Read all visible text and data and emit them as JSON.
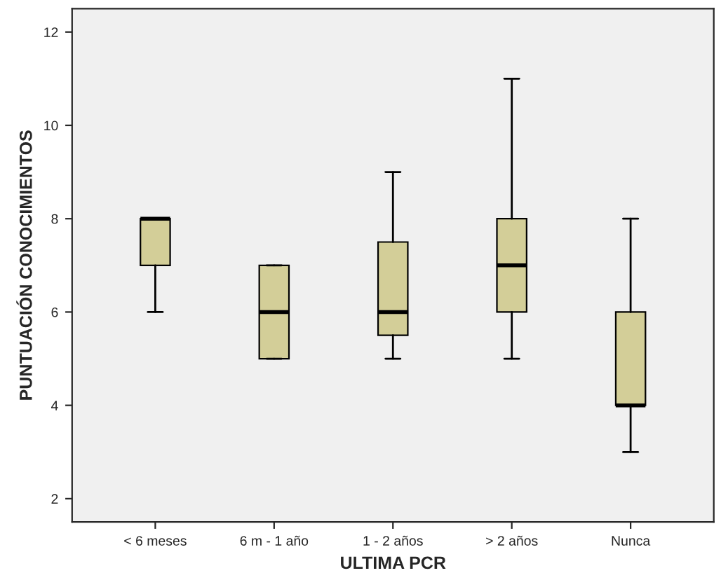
{
  "chart_data": {
    "type": "box",
    "xlabel": "ULTIMA PCR",
    "ylabel": "PUNTUACIÓN CONOCIMIENTOS",
    "categories": [
      "< 6 meses",
      "6 m - 1 año",
      "1 - 2 años",
      "> 2 años",
      "Nunca"
    ],
    "color": "#d3ce98",
    "boxes": [
      {
        "low": 6,
        "q1": 7,
        "median": 8,
        "q3": 8,
        "high": 8
      },
      {
        "low": 5,
        "q1": 5,
        "median": 6,
        "q3": 7,
        "high": 7
      },
      {
        "low": 5,
        "q1": 5.5,
        "median": 6,
        "q3": 7.5,
        "high": 9
      },
      {
        "low": 5,
        "q1": 6,
        "median": 7,
        "q3": 8,
        "high": 11
      },
      {
        "low": 3,
        "q1": 4,
        "median": 4,
        "q3": 6,
        "high": 8
      }
    ],
    "ylim": [
      1.5,
      12.5
    ],
    "yticks": [
      2,
      4,
      6,
      8,
      10,
      12
    ],
    "grid": false
  }
}
